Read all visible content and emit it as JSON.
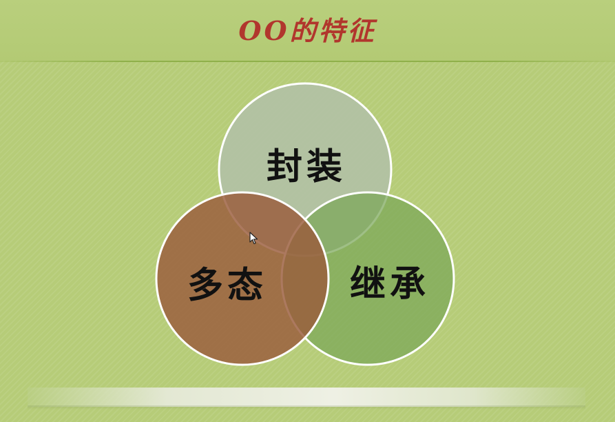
{
  "slide": {
    "title": "OO的特征"
  },
  "venn": {
    "circles": [
      {
        "label": "封装",
        "color": "#b2c0a8"
      },
      {
        "label": "继承",
        "color": "#7aa657"
      },
      {
        "label": "多态",
        "color": "#9a5c3c"
      }
    ],
    "stroke_color": "#ffffff"
  },
  "icons": {
    "cursor": "mouse-pointer-icon"
  }
}
